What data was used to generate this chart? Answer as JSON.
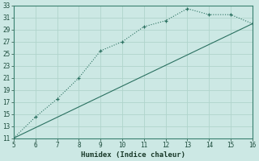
{
  "xlabel": "Humidex (Indice chaleur)",
  "bg_color": "#cce8e4",
  "grid_color": "#b0d4cc",
  "line_color": "#2a7060",
  "spine_color": "#3a8070",
  "xlim": [
    5,
    16
  ],
  "ylim": [
    11,
    33
  ],
  "xticks": [
    5,
    6,
    7,
    8,
    9,
    10,
    11,
    12,
    13,
    14,
    15,
    16
  ],
  "yticks": [
    11,
    13,
    15,
    17,
    19,
    21,
    23,
    25,
    27,
    29,
    31,
    33
  ],
  "line1_x": [
    5,
    6,
    7,
    8,
    9,
    10,
    11,
    12,
    13,
    14,
    15,
    16
  ],
  "line1_y": [
    11,
    14.5,
    17.5,
    21,
    25.5,
    27,
    29.5,
    30.5,
    32.5,
    31.5,
    31.5,
    30
  ],
  "line2_x": [
    5,
    16
  ],
  "line2_y": [
    11,
    30
  ]
}
